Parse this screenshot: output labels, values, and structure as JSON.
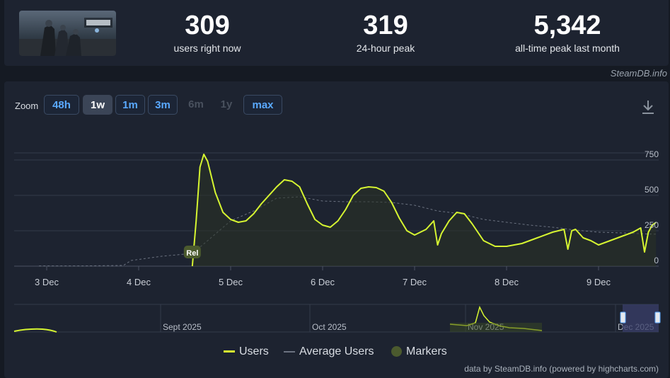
{
  "stats": [
    {
      "value": "309",
      "label": "users right now"
    },
    {
      "value": "319",
      "label": "24-hour peak"
    },
    {
      "value": "5,342",
      "label": "all-time peak last month"
    }
  ],
  "source_label": "SteamDB.info",
  "zoom": {
    "label": "Zoom",
    "buttons": [
      {
        "label": "48h",
        "state": "enabled"
      },
      {
        "label": "1w",
        "state": "selected"
      },
      {
        "label": "1m",
        "state": "enabled"
      },
      {
        "label": "3m",
        "state": "enabled"
      },
      {
        "label": "6m",
        "state": "disabled"
      },
      {
        "label": "1y",
        "state": "disabled"
      },
      {
        "label": "max",
        "state": "enabled"
      }
    ]
  },
  "download_icon": "download-icon",
  "legend": [
    {
      "label": "Users",
      "color": "#d6f531"
    },
    {
      "label": "Average Users",
      "color": "#6b7280"
    },
    {
      "label": "Markers",
      "color": "#4b5a2e"
    }
  ],
  "credits": "data by SteamDB.info (powered by highcharts.com)",
  "navigator": {
    "month_labels": [
      "Sept 2025",
      "Oct 2025",
      "Nov 2025",
      "Dec 2025"
    ]
  },
  "chart_data": {
    "type": "line",
    "x_tick_labels": [
      "3 Dec",
      "4 Dec",
      "5 Dec",
      "6 Dec",
      "7 Dec",
      "8 Dec",
      "9 Dec"
    ],
    "y_tick_labels": [
      "0",
      "250",
      "500",
      "750"
    ],
    "ylim": [
      0,
      800
    ],
    "grid": true,
    "legend_position": "bottom",
    "marker_label": "Rel",
    "series": [
      {
        "name": "Users",
        "color": "#d6f531",
        "points": [
          [
            "4 Dec 14:00",
            0
          ],
          [
            "4 Dec 15:00",
            320
          ],
          [
            "4 Dec 16:00",
            700
          ],
          [
            "4 Dec 17:00",
            790
          ],
          [
            "4 Dec 18:00",
            740
          ],
          [
            "4 Dec 20:00",
            520
          ],
          [
            "4 Dec 22:00",
            380
          ],
          [
            "5 Dec 00:00",
            330
          ],
          [
            "5 Dec 02:00",
            310
          ],
          [
            "5 Dec 04:00",
            320
          ],
          [
            "5 Dec 06:00",
            370
          ],
          [
            "5 Dec 08:00",
            440
          ],
          [
            "5 Dec 10:00",
            500
          ],
          [
            "5 Dec 12:00",
            560
          ],
          [
            "5 Dec 14:00",
            610
          ],
          [
            "5 Dec 16:00",
            600
          ],
          [
            "5 Dec 18:00",
            560
          ],
          [
            "5 Dec 20:00",
            440
          ],
          [
            "5 Dec 22:00",
            330
          ],
          [
            "6 Dec 00:00",
            290
          ],
          [
            "6 Dec 02:00",
            275
          ],
          [
            "6 Dec 04:00",
            320
          ],
          [
            "6 Dec 06:00",
            400
          ],
          [
            "6 Dec 08:00",
            500
          ],
          [
            "6 Dec 10:00",
            550
          ],
          [
            "6 Dec 12:00",
            560
          ],
          [
            "6 Dec 14:00",
            555
          ],
          [
            "6 Dec 16:00",
            530
          ],
          [
            "6 Dec 18:00",
            450
          ],
          [
            "6 Dec 20:00",
            340
          ],
          [
            "6 Dec 22:00",
            250
          ],
          [
            "7 Dec 00:00",
            220
          ],
          [
            "7 Dec 03:00",
            260
          ],
          [
            "7 Dec 05:00",
            320
          ],
          [
            "7 Dec 06:00",
            150
          ],
          [
            "7 Dec 07:00",
            230
          ],
          [
            "7 Dec 09:00",
            320
          ],
          [
            "7 Dec 11:00",
            380
          ],
          [
            "7 Dec 13:00",
            370
          ],
          [
            "7 Dec 15:00",
            300
          ],
          [
            "7 Dec 18:00",
            180
          ],
          [
            "7 Dec 21:00",
            140
          ],
          [
            "8 Dec 00:00",
            140
          ],
          [
            "8 Dec 04:00",
            160
          ],
          [
            "8 Dec 08:00",
            200
          ],
          [
            "8 Dec 12:00",
            240
          ],
          [
            "8 Dec 15:00",
            260
          ],
          [
            "8 Dec 16:00",
            120
          ],
          [
            "8 Dec 17:00",
            250
          ],
          [
            "8 Dec 18:00",
            260
          ],
          [
            "8 Dec 20:00",
            200
          ],
          [
            "8 Dec 22:00",
            180
          ],
          [
            "9 Dec 00:00",
            150
          ],
          [
            "9 Dec 03:00",
            180
          ],
          [
            "9 Dec 06:00",
            210
          ],
          [
            "9 Dec 09:00",
            240
          ],
          [
            "9 Dec 11:00",
            270
          ],
          [
            "9 Dec 12:00",
            100
          ],
          [
            "9 Dec 13:00",
            240
          ],
          [
            "9 Dec 14:00",
            290
          ],
          [
            "9 Dec 15:00",
            309
          ]
        ]
      },
      {
        "name": "Average Users",
        "color": "#6b7280",
        "points": [
          [
            "2 Dec 22:00",
            2
          ],
          [
            "3 Dec 10:00",
            2
          ],
          [
            "3 Dec 20:00",
            5
          ],
          [
            "3 Dec 22:00",
            40
          ],
          [
            "4 Dec 06:00",
            70
          ],
          [
            "4 Dec 14:00",
            90
          ],
          [
            "4 Dec 18:00",
            180
          ],
          [
            "5 Dec 00:00",
            320
          ],
          [
            "5 Dec 06:00",
            390
          ],
          [
            "5 Dec 12:00",
            480
          ],
          [
            "5 Dec 18:00",
            490
          ],
          [
            "6 Dec 00:00",
            460
          ],
          [
            "6 Dec 06:00",
            455
          ],
          [
            "6 Dec 12:00",
            455
          ],
          [
            "6 Dec 18:00",
            450
          ],
          [
            "7 Dec 00:00",
            430
          ],
          [
            "7 Dec 06:00",
            390
          ],
          [
            "7 Dec 12:00",
            370
          ],
          [
            "7 Dec 18:00",
            330
          ],
          [
            "8 Dec 00:00",
            310
          ],
          [
            "8 Dec 06:00",
            290
          ],
          [
            "8 Dec 12:00",
            275
          ],
          [
            "8 Dec 18:00",
            255
          ],
          [
            "9 Dec 00:00",
            240
          ],
          [
            "9 Dec 06:00",
            235
          ],
          [
            "9 Dec 12:00",
            228
          ],
          [
            "9 Dec 15:00",
            226
          ]
        ]
      }
    ]
  }
}
